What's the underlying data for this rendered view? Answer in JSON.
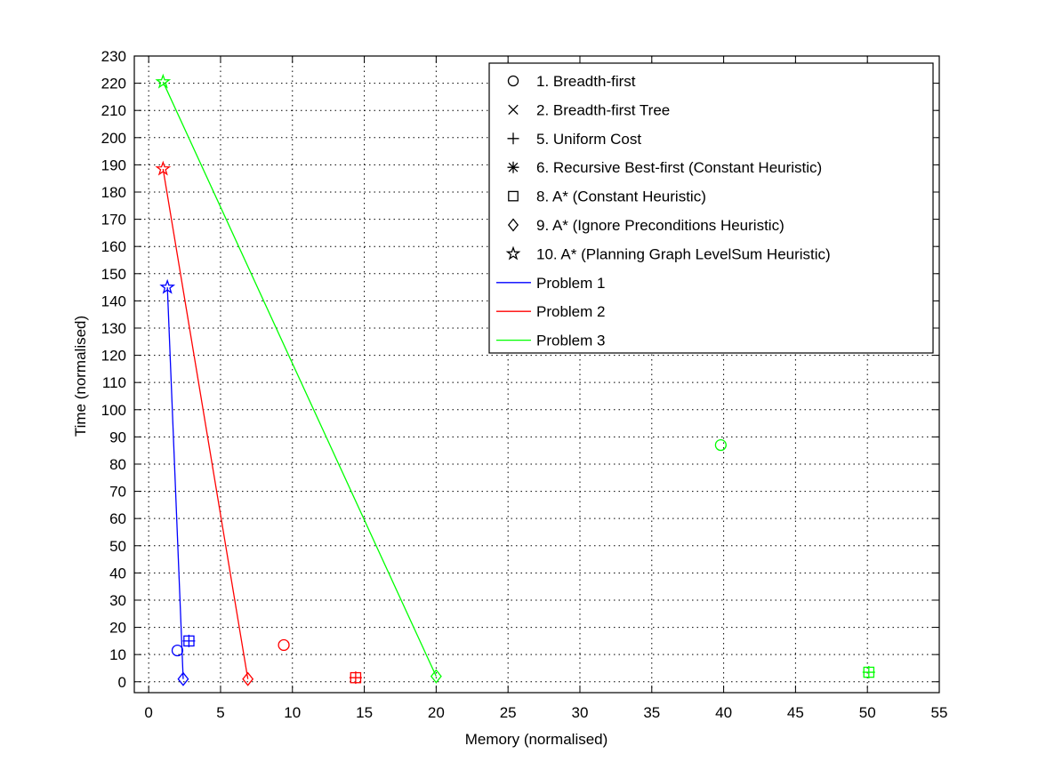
{
  "chart_data": {
    "type": "scatter",
    "title": "",
    "xlabel": "Memory (normalised)",
    "ylabel": "Time (normalised)",
    "xlim": [
      -1,
      55
    ],
    "ylim": [
      -4,
      230
    ],
    "xticks": [
      0,
      5,
      10,
      15,
      20,
      25,
      30,
      35,
      40,
      45,
      50,
      55
    ],
    "yticks": [
      0,
      10,
      20,
      30,
      40,
      50,
      60,
      70,
      80,
      90,
      100,
      110,
      120,
      130,
      140,
      150,
      160,
      170,
      180,
      190,
      200,
      210,
      220,
      230
    ],
    "grid": true,
    "grid_style": "dotted",
    "legend_position": "top-right",
    "marker_legend": [
      {
        "marker": "circle",
        "label": "1. Breadth-first"
      },
      {
        "marker": "x",
        "label": "2. Breadth-first Tree"
      },
      {
        "marker": "plus",
        "label": "5. Uniform Cost"
      },
      {
        "marker": "asterisk",
        "label": "6. Recursive Best-first (Constant Heuristic)"
      },
      {
        "marker": "square",
        "label": "8. A* (Constant Heuristic)"
      },
      {
        "marker": "diamond",
        "label": "9. A* (Ignore Preconditions Heuristic)"
      },
      {
        "marker": "star",
        "label": "10. A* (Planning Graph LevelSum Heuristic)"
      }
    ],
    "series": [
      {
        "name": "Problem 1",
        "color": "#0000ff",
        "points": [
          {
            "marker": "circle",
            "x": 2.0,
            "y": 11.5
          },
          {
            "marker": "plus",
            "x": 2.8,
            "y": 15.0
          },
          {
            "marker": "square",
            "x": 2.8,
            "y": 15.0
          },
          {
            "marker": "diamond",
            "x": 2.4,
            "y": 1.0
          },
          {
            "marker": "star",
            "x": 1.3,
            "y": 145.0
          }
        ],
        "line": [
          [
            1.3,
            145.0
          ],
          [
            2.4,
            1.0
          ]
        ]
      },
      {
        "name": "Problem 2",
        "color": "#ff0000",
        "points": [
          {
            "marker": "circle",
            "x": 9.4,
            "y": 13.5
          },
          {
            "marker": "plus",
            "x": 14.4,
            "y": 1.5
          },
          {
            "marker": "square",
            "x": 14.4,
            "y": 1.5
          },
          {
            "marker": "diamond",
            "x": 6.9,
            "y": 1.0
          },
          {
            "marker": "star",
            "x": 1.0,
            "y": 188.5
          }
        ],
        "line": [
          [
            1.0,
            188.5
          ],
          [
            6.9,
            1.0
          ]
        ]
      },
      {
        "name": "Problem 3",
        "color": "#00ff00",
        "points": [
          {
            "marker": "circle",
            "x": 39.8,
            "y": 87.0
          },
          {
            "marker": "plus",
            "x": 50.1,
            "y": 3.5
          },
          {
            "marker": "square",
            "x": 50.1,
            "y": 3.5
          },
          {
            "marker": "diamond",
            "x": 20.0,
            "y": 2.0
          },
          {
            "marker": "star",
            "x": 1.0,
            "y": 220.5
          }
        ],
        "line": [
          [
            1.0,
            220.5
          ],
          [
            20.0,
            2.0
          ]
        ]
      }
    ]
  }
}
